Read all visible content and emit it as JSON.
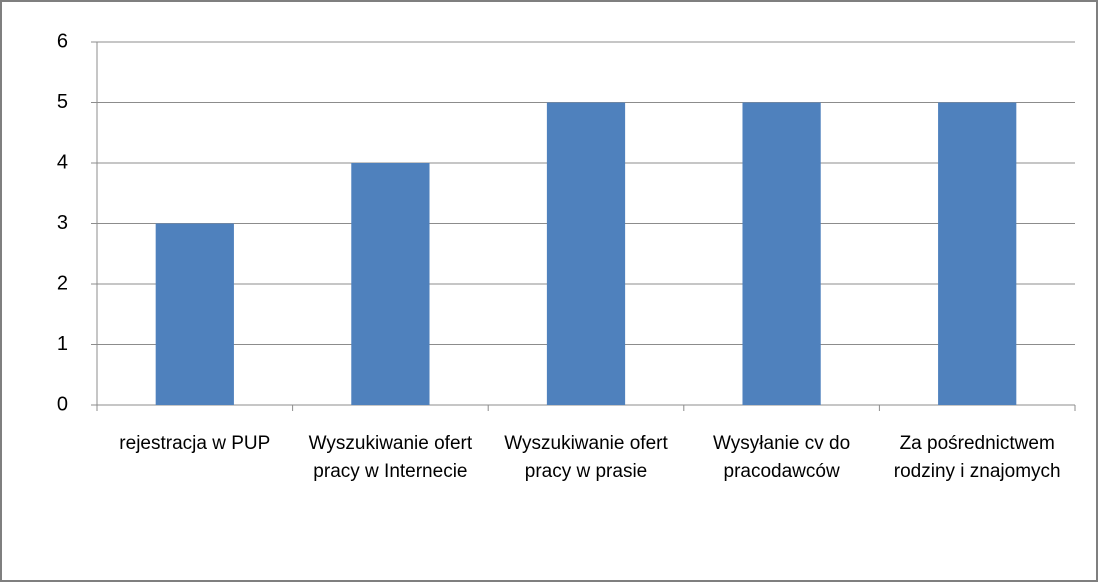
{
  "chart_data": {
    "type": "bar",
    "categories": [
      "rejestracja w PUP",
      "Wyszukiwanie ofert pracy w Internecie",
      "Wyszukiwanie ofert pracy w prasie",
      "Wysyłanie cv do pracodawców",
      "Za pośrednictwem rodziny i znajomych"
    ],
    "values": [
      3,
      4,
      5,
      5,
      5
    ],
    "color": "#4f81bd",
    "ylim": [
      0,
      6
    ],
    "yticks": [
      0,
      1,
      2,
      3,
      4,
      5,
      6
    ],
    "grid": true
  }
}
